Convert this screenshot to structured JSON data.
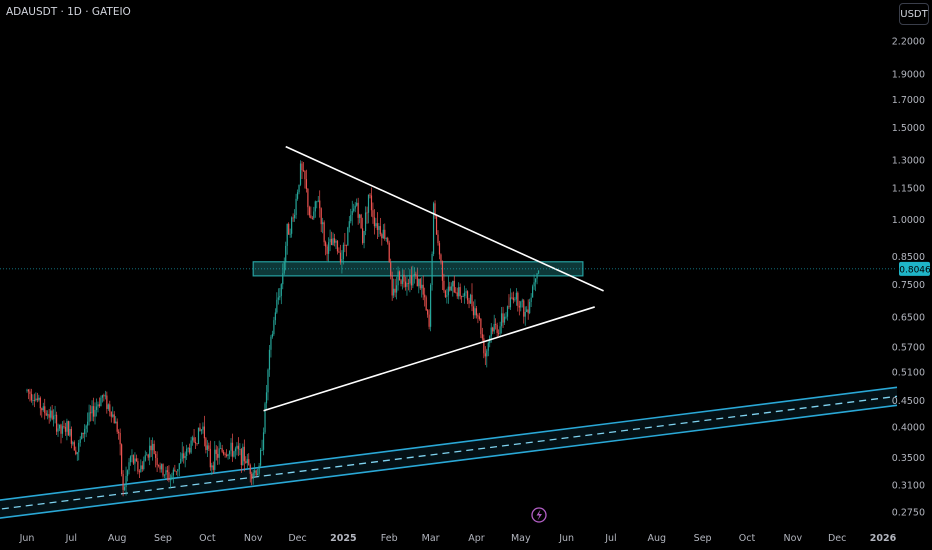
{
  "header": {
    "title": "ADAUSDT · 1D · GATEIO",
    "currency_button": "USDT"
  },
  "price_tag": "0.8046",
  "chart_data": {
    "type": "candlestick",
    "symbol": "ADAUSDT",
    "interval": "1D",
    "exchange": "GATEIO",
    "y_scale": "log",
    "y_ticks": [
      "2.2000",
      "1.9000",
      "1.7000",
      "1.5000",
      "1.3000",
      "1.1500",
      "1.0000",
      "0.8500",
      "0.7500",
      "0.6500",
      "0.5700",
      "0.5100",
      "0.4500",
      "0.4000",
      "0.3500",
      "0.3100",
      "0.2750"
    ],
    "x_ticks": [
      "Jun",
      "Jul",
      "Aug",
      "Sep",
      "Oct",
      "Nov",
      "Dec",
      "2025",
      "Feb",
      "Mar",
      "Apr",
      "May",
      "Jun",
      "Jul",
      "Aug",
      "Sep",
      "Oct",
      "Nov",
      "Dec",
      "2026"
    ],
    "colors": {
      "up": "#26a69a",
      "down": "#ef5350",
      "channel": "#2aa8d6",
      "zone": "#26a0a0",
      "trendline": "#ffffff",
      "price_tag": "#1fb5c8",
      "axis_text": "#b2b5be"
    },
    "price_path": [
      [
        "2024-06-01",
        0.47
      ],
      [
        "2024-06-06",
        0.46
      ],
      [
        "2024-06-12",
        0.43
      ],
      [
        "2024-06-18",
        0.42
      ],
      [
        "2024-06-24",
        0.39
      ],
      [
        "2024-06-28",
        0.4
      ],
      [
        "2024-07-05",
        0.36
      ],
      [
        "2024-07-10",
        0.4
      ],
      [
        "2024-07-16",
        0.43
      ],
      [
        "2024-07-22",
        0.46
      ],
      [
        "2024-07-28",
        0.43
      ],
      [
        "2024-08-02",
        0.39
      ],
      [
        "2024-08-05",
        0.3
      ],
      [
        "2024-08-10",
        0.35
      ],
      [
        "2024-08-16",
        0.33
      ],
      [
        "2024-08-24",
        0.37
      ],
      [
        "2024-08-31",
        0.33
      ],
      [
        "2024-09-06",
        0.32
      ],
      [
        "2024-09-12",
        0.34
      ],
      [
        "2024-09-20",
        0.37
      ],
      [
        "2024-09-28",
        0.4
      ],
      [
        "2024-10-03",
        0.34
      ],
      [
        "2024-10-10",
        0.36
      ],
      [
        "2024-10-20",
        0.36
      ],
      [
        "2024-10-26",
        0.35
      ],
      [
        "2024-10-31",
        0.33
      ],
      [
        "2024-11-05",
        0.33
      ],
      [
        "2024-11-08",
        0.4
      ],
      [
        "2024-11-12",
        0.55
      ],
      [
        "2024-11-16",
        0.67
      ],
      [
        "2024-11-20",
        0.75
      ],
      [
        "2024-11-24",
        0.95
      ],
      [
        "2024-11-28",
        1.0
      ],
      [
        "2024-12-03",
        1.25
      ],
      [
        "2024-12-06",
        1.18
      ],
      [
        "2024-12-10",
        0.98
      ],
      [
        "2024-12-15",
        1.1
      ],
      [
        "2024-12-20",
        0.88
      ],
      [
        "2024-12-26",
        0.9
      ],
      [
        "2024-12-31",
        0.85
      ],
      [
        "2025-01-05",
        0.98
      ],
      [
        "2025-01-10",
        1.08
      ],
      [
        "2025-01-14",
        0.92
      ],
      [
        "2025-01-18",
        1.12
      ],
      [
        "2025-01-22",
        1.0
      ],
      [
        "2025-01-27",
        0.95
      ],
      [
        "2025-01-31",
        0.92
      ],
      [
        "2025-02-03",
        0.7
      ],
      [
        "2025-02-07",
        0.78
      ],
      [
        "2025-02-12",
        0.77
      ],
      [
        "2025-02-18",
        0.78
      ],
      [
        "2025-02-23",
        0.74
      ],
      [
        "2025-02-28",
        0.62
      ],
      [
        "2025-03-03",
        1.05
      ],
      [
        "2025-03-06",
        0.9
      ],
      [
        "2025-03-11",
        0.72
      ],
      [
        "2025-03-16",
        0.74
      ],
      [
        "2025-03-22",
        0.72
      ],
      [
        "2025-03-28",
        0.7
      ],
      [
        "2025-04-02",
        0.66
      ],
      [
        "2025-04-07",
        0.55
      ],
      [
        "2025-04-11",
        0.62
      ],
      [
        "2025-04-16",
        0.62
      ],
      [
        "2025-04-22",
        0.67
      ],
      [
        "2025-04-26",
        0.72
      ],
      [
        "2025-04-30",
        0.7
      ],
      [
        "2025-05-04",
        0.66
      ],
      [
        "2025-05-08",
        0.72
      ],
      [
        "2025-05-11",
        0.8
      ],
      [
        "2025-05-13",
        0.81
      ]
    ],
    "annotations": [
      {
        "kind": "trendline",
        "points": [
          [
            "2024-11-23",
            1.38
          ],
          [
            "2025-06-26",
            0.73
          ]
        ]
      },
      {
        "kind": "trendline",
        "points": [
          [
            "2024-11-08",
            0.43
          ],
          [
            "2025-06-20",
            0.68
          ]
        ]
      },
      {
        "kind": "zone",
        "from": "2024-11-01",
        "to": "2025-06-12",
        "y_top": 0.83,
        "y_bottom": 0.78
      },
      {
        "kind": "channel",
        "points": [
          [
            "2024-05-20",
            0.28
          ],
          [
            "2026-01-15",
            0.46
          ]
        ],
        "width_factor": 1.05
      }
    ],
    "current_price": 0.8046
  }
}
